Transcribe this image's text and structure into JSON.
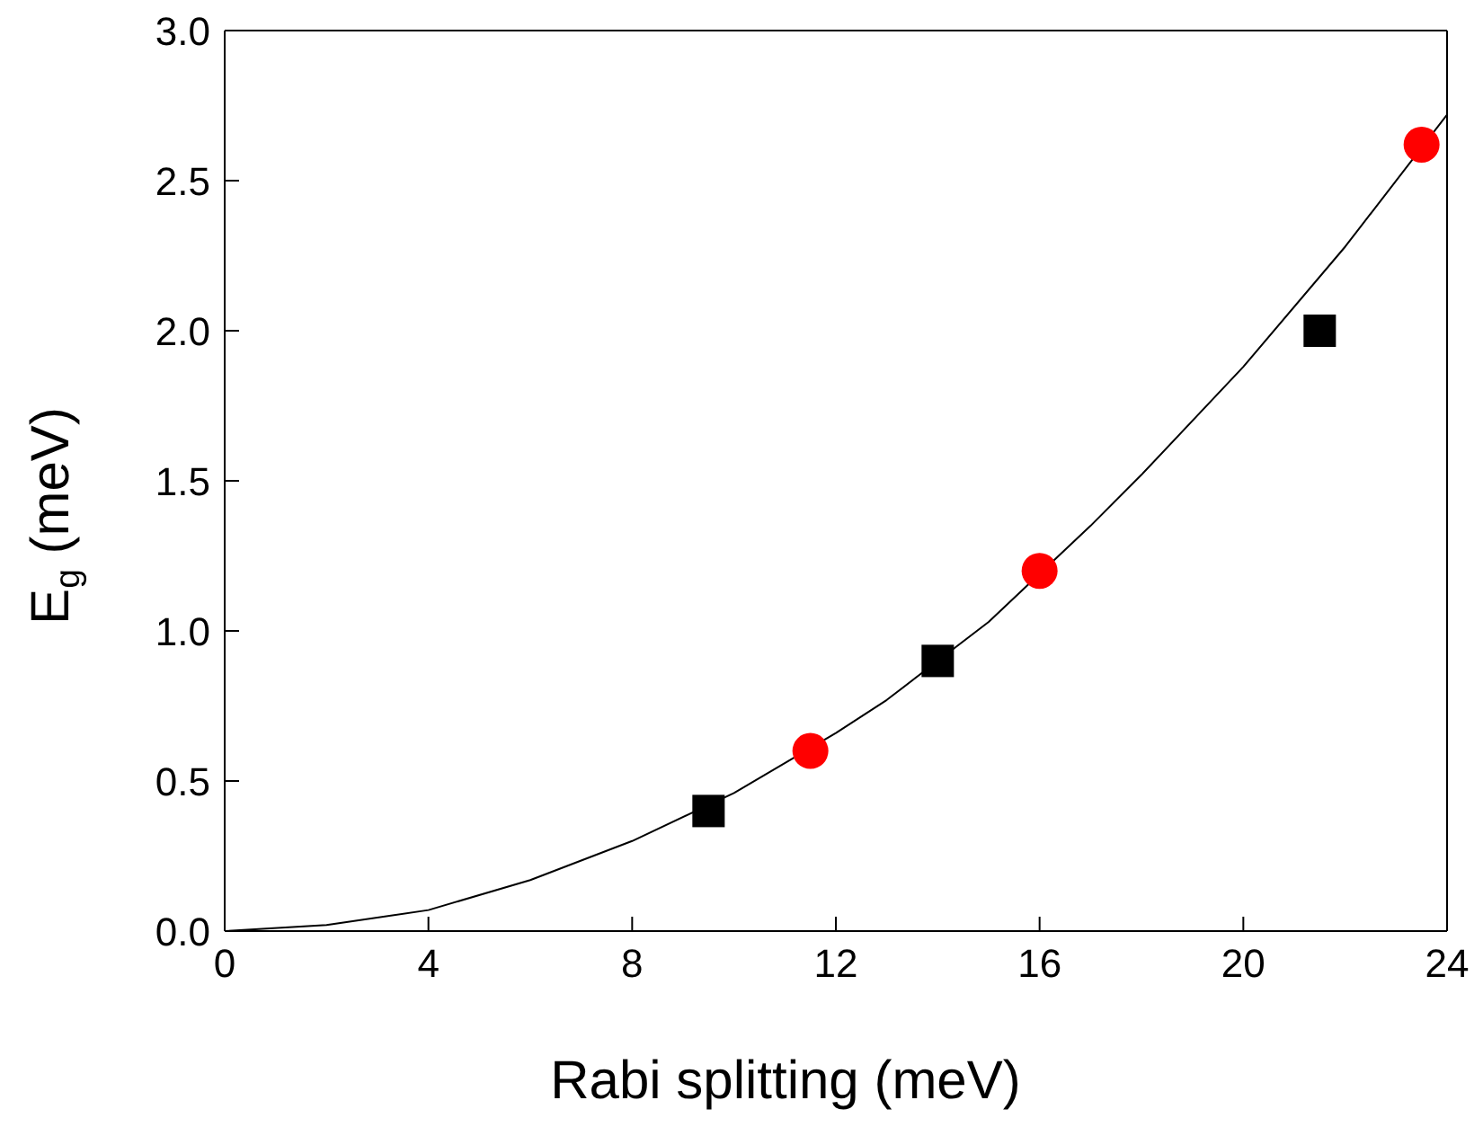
{
  "chart_data": {
    "type": "scatter",
    "xlabel": "Rabi splitting (meV)",
    "ylabel": "E$_{g}$ (meV)",
    "xlim": [
      0,
      24
    ],
    "xticks": [
      0,
      4,
      8,
      12,
      16,
      20,
      24
    ],
    "ylim": [
      0,
      3.0
    ],
    "yticks": [
      {
        "value": 0,
        "label": "0.0"
      },
      {
        "value": 0.5,
        "label": "0.5"
      },
      {
        "value": 1.0,
        "label": "1.0"
      },
      {
        "value": 1.5,
        "label": "1.5"
      },
      {
        "value": 2.0,
        "label": "2.0"
      },
      {
        "value": 2.5,
        "label": "2.5"
      },
      {
        "value": 3.0,
        "label": "3.0"
      }
    ],
    "series": [
      {
        "marker": "square",
        "color": "#000000",
        "x": [
          9.5,
          14,
          21.5
        ],
        "values": [
          0.4,
          0.9,
          2.0
        ]
      },
      {
        "marker": "circle",
        "color": "#ff0000",
        "x": [
          11.5,
          16,
          23.5
        ],
        "values": [
          0.6,
          1.2,
          2.62
        ]
      },
      {
        "type": "line",
        "marker": "none",
        "color": "#000000",
        "x": [
          0,
          2,
          4,
          6,
          8,
          10,
          12,
          13,
          15,
          17,
          18,
          20,
          22,
          24
        ],
        "values": [
          0,
          0.02,
          0.07,
          0.17,
          0.3,
          0.46,
          0.66,
          0.77,
          1.03,
          1.35,
          1.52,
          1.88,
          2.28,
          2.72
        ]
      }
    ]
  }
}
